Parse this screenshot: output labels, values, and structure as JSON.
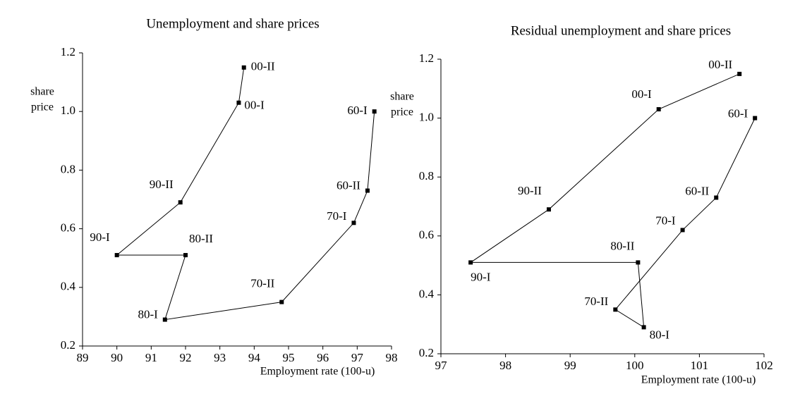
{
  "chart_data": [
    {
      "type": "connected-scatter",
      "title": "Unemployment and share prices",
      "xlabel": "Employment rate (100-u)",
      "ylabel": [
        "share",
        "price"
      ],
      "labels": [
        "60-I",
        "60-II",
        "70-I",
        "70-II",
        "80-I",
        "80-II",
        "90-I",
        "90-II",
        "00-I",
        "00-II"
      ],
      "x": [
        97.5,
        97.3,
        96.9,
        94.8,
        91.4,
        92.0,
        90.0,
        91.85,
        93.55,
        93.7
      ],
      "y": [
        1.0,
        0.73,
        0.62,
        0.35,
        0.29,
        0.51,
        0.51,
        0.69,
        1.03,
        1.15
      ],
      "color": "#000000",
      "xlim": [
        89,
        98
      ],
      "xticks": [
        89,
        90,
        91,
        92,
        93,
        94,
        95,
        96,
        97,
        98
      ],
      "ylim": [
        0.2,
        1.2
      ],
      "yticks": [
        0.2,
        0.4,
        0.6,
        0.8,
        {
          "value": 1,
          "label": "1.0"
        },
        1.2
      ]
    },
    {
      "type": "connected-scatter",
      "title": "Residual unemployment and share prices",
      "xlabel": "Employment rate (100-u)",
      "ylabel": [
        "share",
        "price"
      ],
      "labels": [
        "60-I",
        "60-II",
        "70-I",
        "70-II",
        "80-I",
        "80-II",
        "90-I",
        "90-II",
        "00-I",
        "00-II"
      ],
      "x": [
        101.86,
        101.26,
        100.74,
        99.7,
        100.14,
        100.05,
        97.46,
        98.67,
        100.37,
        101.62
      ],
      "y": [
        1.0,
        0.73,
        0.62,
        0.35,
        0.29,
        0.51,
        0.51,
        0.69,
        1.03,
        1.15
      ],
      "color": "#000000",
      "xlim": [
        97,
        102
      ],
      "xticks": [
        97,
        98,
        99,
        100,
        101,
        102
      ],
      "ylim": [
        0.2,
        1.2
      ],
      "yticks": [
        0.2,
        0.4,
        0.6,
        0.8,
        {
          "value": 1,
          "label": "1.0"
        },
        1.2
      ]
    }
  ]
}
